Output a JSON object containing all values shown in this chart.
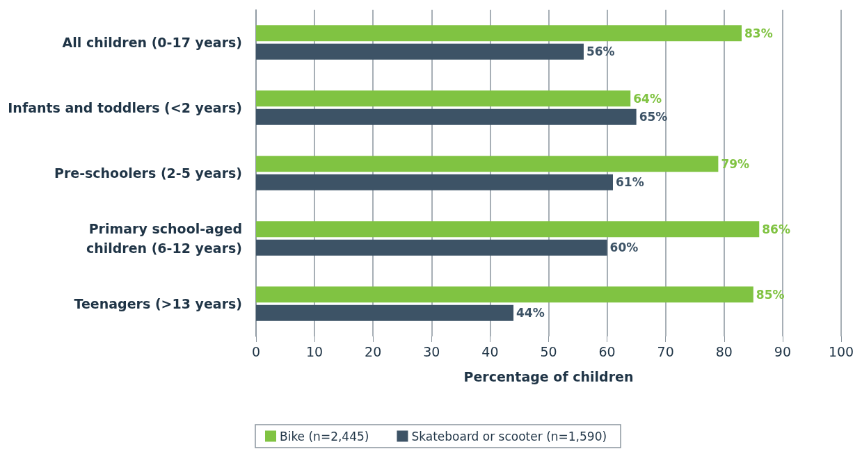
{
  "chart_data": {
    "type": "bar",
    "orientation": "horizontal",
    "xlabel": "Percentage of children",
    "categories": [
      "All children (0-17 years)",
      "Infants and toddlers (<2 years)",
      "Pre-schoolers (2-5 years)",
      "Primary school-aged\nchildren (6-12 years)",
      "Teenagers (>13 years)"
    ],
    "series": [
      {
        "name": "Bike (n=2,445)",
        "color": "#80c342",
        "values": [
          83,
          64,
          79,
          86,
          85
        ],
        "value_labels": [
          "83%",
          "64%",
          "79%",
          "86%",
          "85%"
        ]
      },
      {
        "name": "Skateboard or scooter (n=1,590)",
        "color": "#3d5366",
        "values": [
          56,
          65,
          61,
          60,
          44
        ],
        "value_labels": [
          "56%",
          "65%",
          "61%",
          "60%",
          "44%"
        ]
      }
    ],
    "xlim": [
      0,
      100
    ],
    "xticks": [
      0,
      10,
      20,
      30,
      40,
      50,
      60,
      70,
      80,
      90,
      100
    ],
    "grid": "x",
    "legend": "bottom"
  }
}
